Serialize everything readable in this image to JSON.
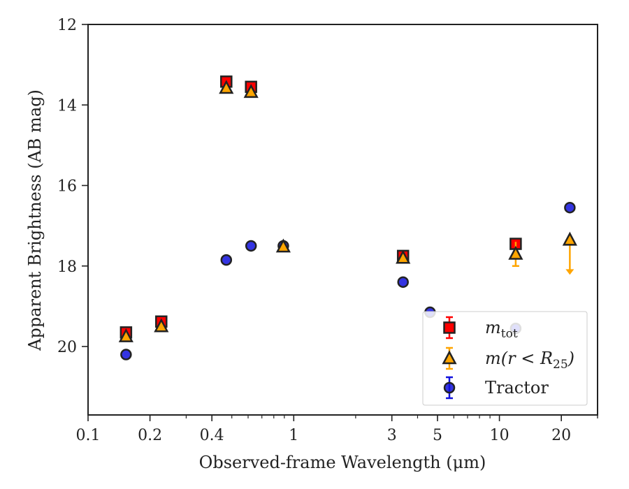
{
  "chart_data": {
    "type": "scatter",
    "xlabel": "Observed-frame Wavelength (μm)",
    "ylabel": "Apparent Brightness (AB mag)",
    "xscale": "log",
    "xlim": [
      0.1,
      30
    ],
    "ylim": [
      21.7,
      12
    ],
    "y_inverted": true,
    "grid": false,
    "legend_position": "lower-right",
    "x_ticks": [
      {
        "value": 0.1,
        "label": "0.1"
      },
      {
        "value": 0.2,
        "label": "0.2"
      },
      {
        "value": 0.4,
        "label": "0.4"
      },
      {
        "value": 1,
        "label": "1"
      },
      {
        "value": 3,
        "label": "3"
      },
      {
        "value": 5,
        "label": "5"
      },
      {
        "value": 10,
        "label": "10"
      },
      {
        "value": 20,
        "label": "20"
      }
    ],
    "y_ticks": [
      {
        "value": 12,
        "label": "12"
      },
      {
        "value": 14,
        "label": "14"
      },
      {
        "value": 16,
        "label": "16"
      },
      {
        "value": 18,
        "label": "18"
      },
      {
        "value": 20,
        "label": "20"
      }
    ],
    "series": [
      {
        "name": "m_tot",
        "legend_main": "m",
        "legend_sub": "tot",
        "marker": "square",
        "color": "#ff0000",
        "edge_color": "#222222",
        "errorbar_color": "#ff0000",
        "points": [
          {
            "x": 0.153,
            "y": 19.65
          },
          {
            "x": 0.227,
            "y": 19.38
          },
          {
            "x": 0.47,
            "y": 13.42
          },
          {
            "x": 0.62,
            "y": 13.55
          },
          {
            "x": 3.4,
            "y": 17.75
          },
          {
            "x": 12.0,
            "y": 17.45
          }
        ]
      },
      {
        "name": "m(r < R25)",
        "legend_main": "m(r < R",
        "legend_sub": "25",
        "legend_end": ")",
        "marker": "triangle",
        "color": "#ffa500",
        "edge_color": "#222222",
        "errorbar_color": "#ffa500",
        "points": [
          {
            "x": 0.153,
            "y": 19.75
          },
          {
            "x": 0.227,
            "y": 19.5
          },
          {
            "x": 0.47,
            "y": 13.58
          },
          {
            "x": 0.62,
            "y": 13.68
          },
          {
            "x": 0.89,
            "y": 17.52
          },
          {
            "x": 3.4,
            "y": 17.8
          },
          {
            "x": 12.0,
            "y": 17.7,
            "yerr": 0.3
          },
          {
            "x": 22.0,
            "y": 17.35,
            "upper_limit": true
          }
        ]
      },
      {
        "name": "Tractor",
        "legend_main": "Tractor",
        "marker": "circle",
        "color": "#1111dd",
        "edge_color": "#222222",
        "errorbar_color": "#1111dd",
        "points": [
          {
            "x": 0.153,
            "y": 20.2
          },
          {
            "x": 0.227,
            "y": 19.48
          },
          {
            "x": 0.47,
            "y": 17.85
          },
          {
            "x": 0.62,
            "y": 17.5
          },
          {
            "x": 0.89,
            "y": 17.5
          },
          {
            "x": 3.4,
            "y": 18.4
          },
          {
            "x": 4.6,
            "y": 19.15
          },
          {
            "x": 12.0,
            "y": 19.55
          },
          {
            "x": 22.0,
            "y": 16.55
          }
        ]
      }
    ]
  }
}
